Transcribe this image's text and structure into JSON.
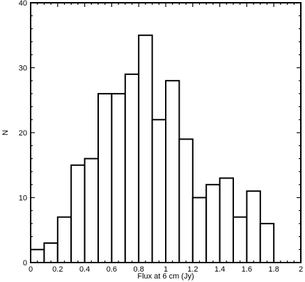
{
  "chart_data": {
    "type": "bar",
    "xlabel": "Flux at 6 cm (Jy)",
    "ylabel": "N",
    "xlim": [
      0,
      2
    ],
    "ylim": [
      0,
      40
    ],
    "x_ticks": [
      0,
      0.2,
      0.4,
      0.6,
      0.8,
      1,
      1.2,
      1.4,
      1.6,
      1.8,
      2
    ],
    "x_tick_labels": [
      "0",
      "0.2",
      "0.4",
      "0.6",
      "0.8",
      "1",
      "1.2",
      "1.4",
      "1.6",
      "1.8",
      "2"
    ],
    "y_ticks": [
      0,
      10,
      20,
      30,
      40
    ],
    "y_tick_labels": [
      "0",
      "10",
      "20",
      "30",
      "40"
    ],
    "bin_width": 0.1,
    "bin_starts": [
      0.0,
      0.1,
      0.2,
      0.3,
      0.4,
      0.5,
      0.6,
      0.7,
      0.8,
      0.9,
      1.0,
      1.1,
      1.2,
      1.3,
      1.4,
      1.5,
      1.6,
      1.7
    ],
    "values": [
      2,
      3,
      7,
      15,
      16,
      26,
      26,
      29,
      35,
      22,
      28,
      19,
      10,
      12,
      13,
      7,
      11,
      6
    ],
    "grid": false
  }
}
